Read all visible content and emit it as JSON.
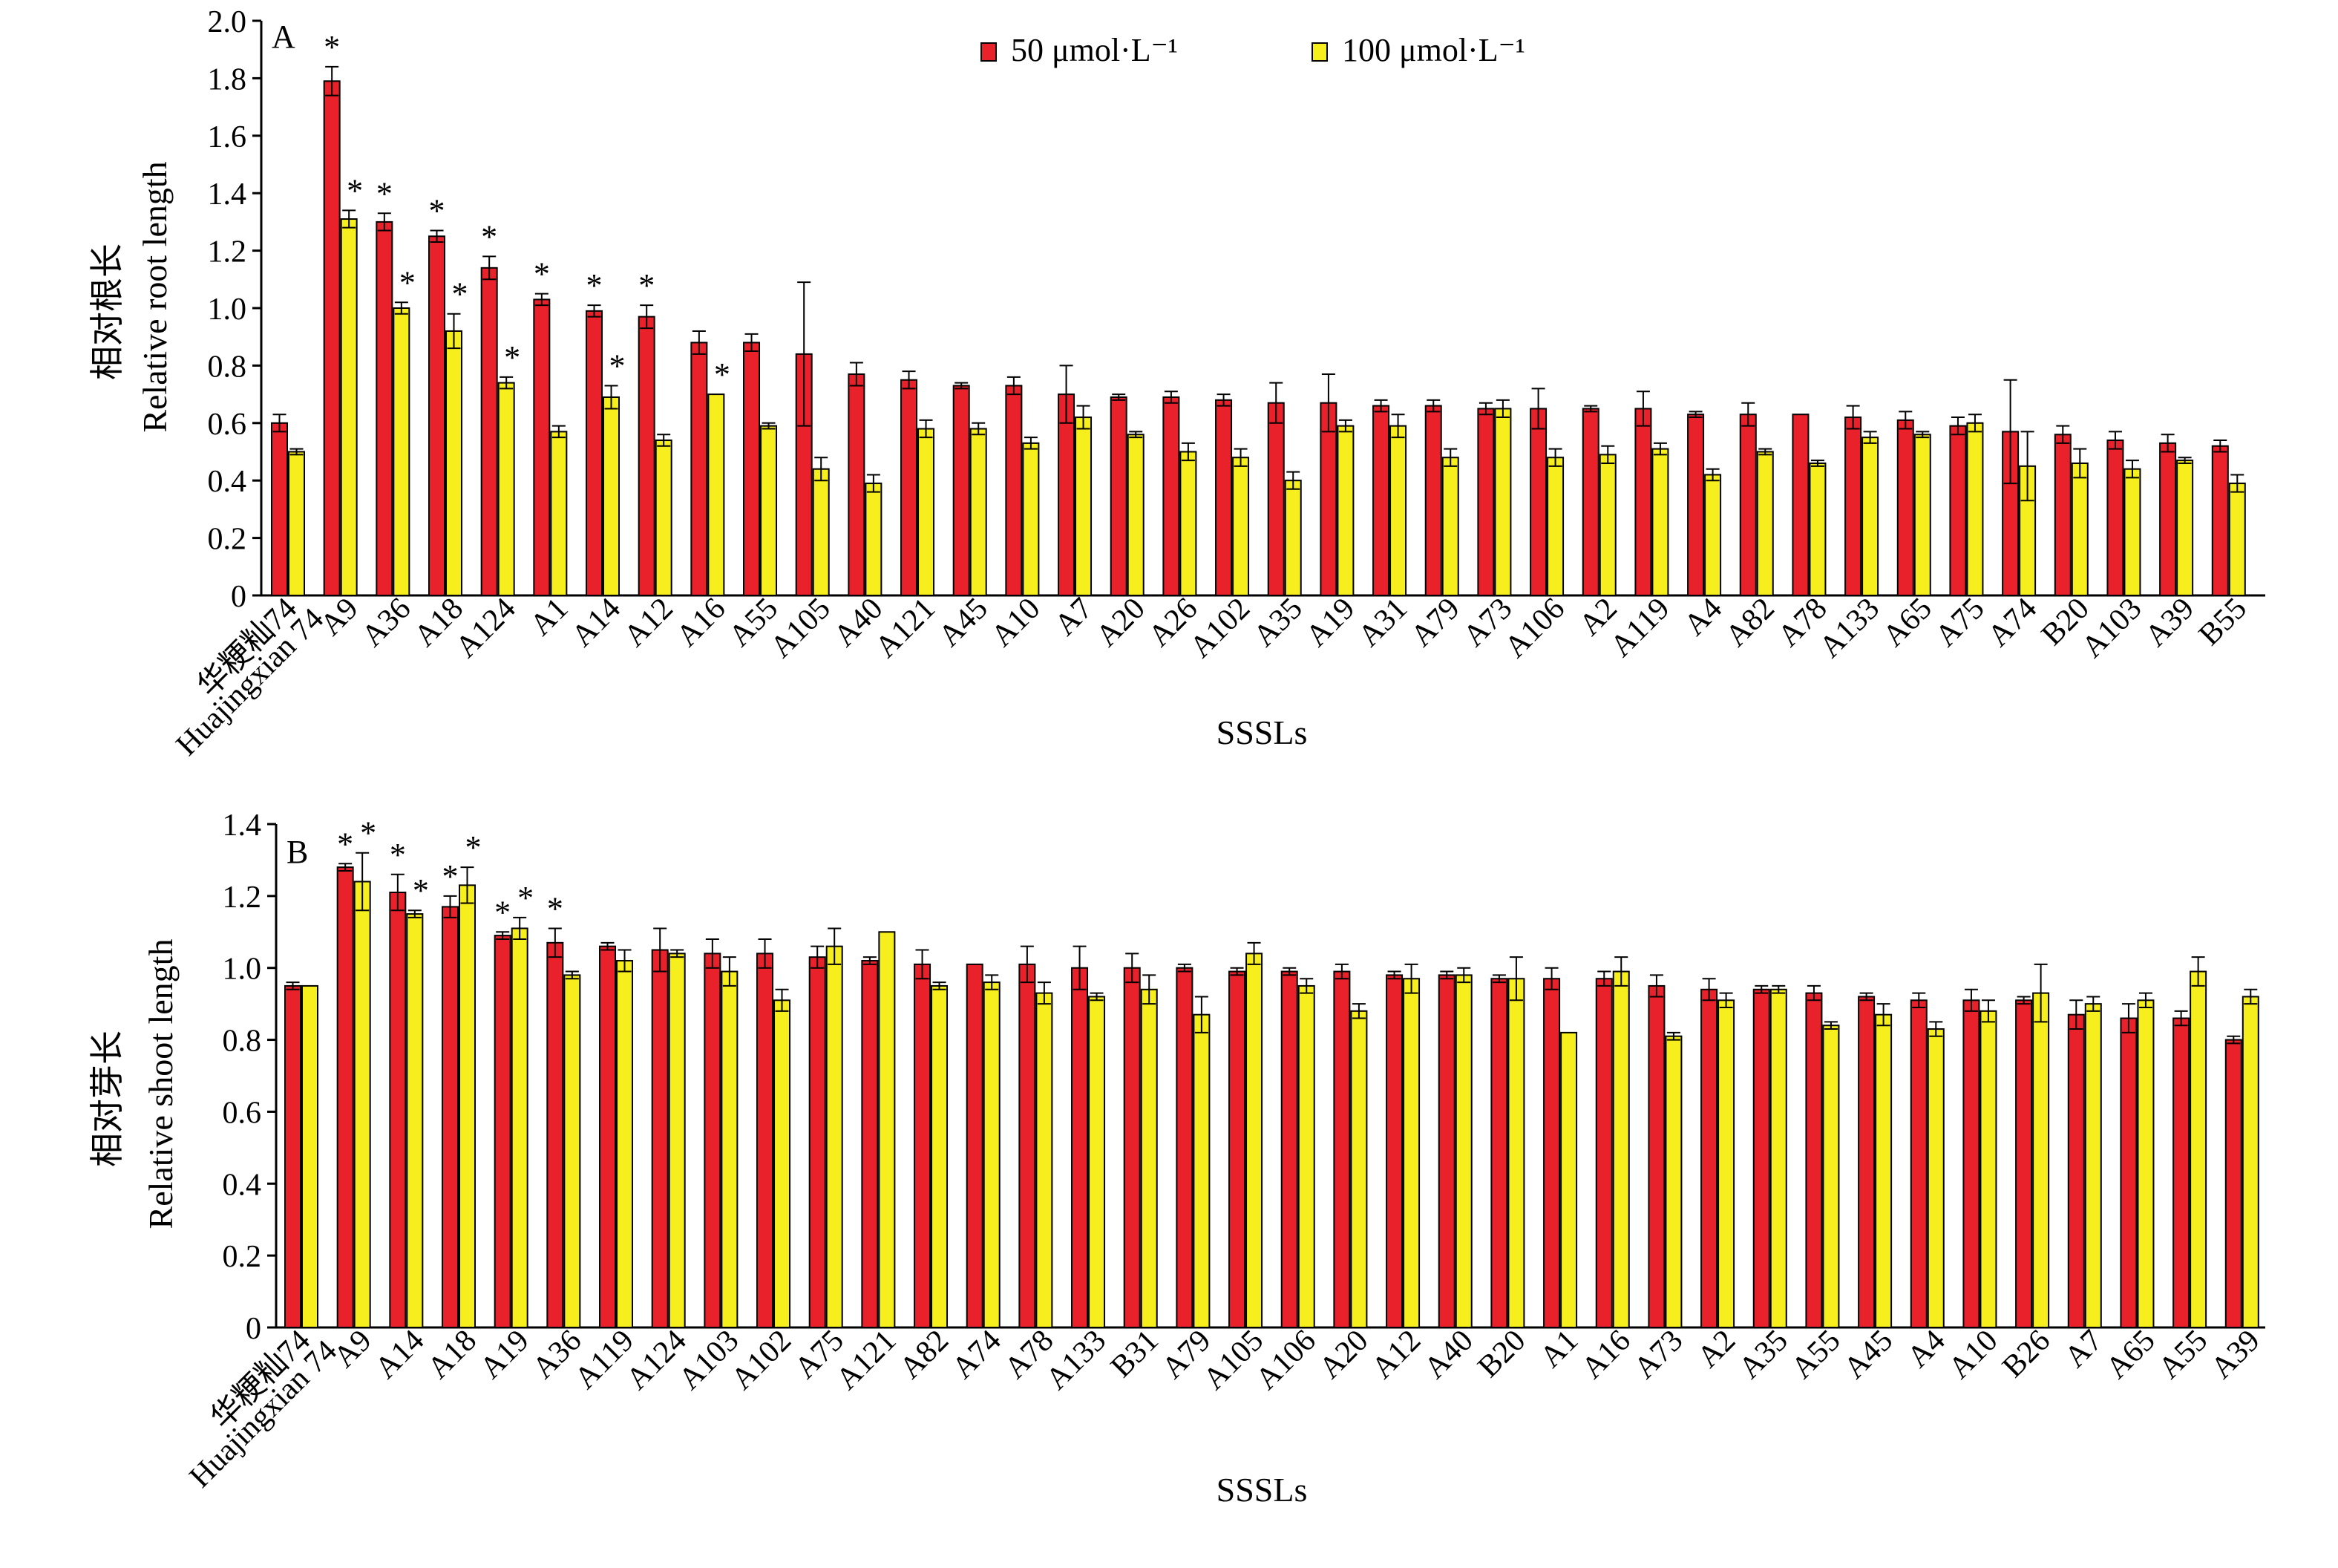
{
  "colors": {
    "series_50": "#E8212A",
    "series_100": "#F6EE1D",
    "bar_edge": "#000000",
    "axis": "#000000"
  },
  "legend": [
    {
      "label": "50 μmol·L⁻¹",
      "color": "#E8212A"
    },
    {
      "label": "100 μmol·L⁻¹",
      "color": "#F6EE1D"
    }
  ],
  "chart_data": [
    {
      "type": "bar",
      "panel_label": "A",
      "ylabel_cn": "相对根长",
      "ylabel": "Relative root length",
      "xlabel": "SSSLs",
      "ylim": [
        0,
        2.0
      ],
      "yticks": [
        "0",
        "0.2",
        "0.4",
        "0.6",
        "0.8",
        "1.0",
        "1.2",
        "1.4",
        "1.6",
        "1.8",
        "2.0"
      ],
      "categories": [
        "华粳籼74 Huajingxian 74",
        "A9",
        "A36",
        "A18",
        "A124",
        "A1",
        "A14",
        "A12",
        "A16",
        "A55",
        "A105",
        "A40",
        "A121",
        "A45",
        "A10",
        "A7",
        "A20",
        "A26",
        "A102",
        "A35",
        "A19",
        "A31",
        "A79",
        "A73",
        "A106",
        "A2",
        "A119",
        "A4",
        "A82",
        "A78",
        "A133",
        "A65",
        "A75",
        "A74",
        "B20",
        "A103",
        "A39",
        "B55"
      ],
      "series": [
        {
          "name": "50 μmol·L⁻¹",
          "values": [
            0.6,
            1.79,
            1.3,
            1.25,
            1.14,
            1.03,
            0.99,
            0.97,
            0.88,
            0.88,
            0.84,
            0.77,
            0.75,
            0.73,
            0.73,
            0.7,
            0.69,
            0.69,
            0.68,
            0.67,
            0.67,
            0.66,
            0.66,
            0.65,
            0.65,
            0.65,
            0.65,
            0.63,
            0.63,
            0.63,
            0.62,
            0.61,
            0.59,
            0.57,
            0.56,
            0.54,
            0.53,
            0.52
          ],
          "errors": [
            0.03,
            0.05,
            0.03,
            0.02,
            0.04,
            0.02,
            0.02,
            0.04,
            0.04,
            0.03,
            0.25,
            0.04,
            0.03,
            0.01,
            0.03,
            0.1,
            0.01,
            0.02,
            0.02,
            0.07,
            0.1,
            0.02,
            0.02,
            0.02,
            0.07,
            0.01,
            0.06,
            0.01,
            0.04,
            0.0,
            0.04,
            0.03,
            0.03,
            0.18,
            0.03,
            0.03,
            0.03,
            0.02
          ],
          "stars": [
            "",
            "*",
            "*",
            "*",
            "*",
            "*",
            "*",
            "*",
            "",
            "",
            "",
            "",
            "",
            "",
            "",
            "",
            "",
            "",
            "",
            "",
            "",
            "",
            "",
            "",
            "",
            "",
            "",
            "",
            "",
            "",
            "",
            "",
            "",
            "",
            "",
            "",
            "",
            ""
          ]
        },
        {
          "name": "100 μmol·L⁻¹",
          "values": [
            0.5,
            1.31,
            1.0,
            0.92,
            0.74,
            0.57,
            0.69,
            0.54,
            0.7,
            0.59,
            0.44,
            0.39,
            0.58,
            0.58,
            0.53,
            0.62,
            0.56,
            0.5,
            0.48,
            0.4,
            0.59,
            0.59,
            0.48,
            0.65,
            0.48,
            0.49,
            0.51,
            0.42,
            0.5,
            0.46,
            0.55,
            0.56,
            0.6,
            0.45,
            0.46,
            0.44,
            0.47,
            0.39
          ],
          "errors": [
            0.01,
            0.03,
            0.02,
            0.06,
            0.02,
            0.02,
            0.04,
            0.02,
            0.0,
            0.01,
            0.04,
            0.03,
            0.03,
            0.02,
            0.02,
            0.04,
            0.01,
            0.03,
            0.03,
            0.03,
            0.02,
            0.04,
            0.03,
            0.03,
            0.03,
            0.03,
            0.02,
            0.02,
            0.01,
            0.01,
            0.02,
            0.01,
            0.03,
            0.12,
            0.05,
            0.03,
            0.01,
            0.03
          ],
          "stars": [
            "",
            "*",
            "*",
            "*",
            "*",
            "",
            "*",
            "",
            "*",
            "",
            "",
            "",
            "",
            "",
            "",
            "",
            "",
            "",
            "",
            "",
            "",
            "",
            "",
            "",
            "",
            "",
            "",
            "",
            "",
            "",
            "",
            "",
            "",
            "",
            "",
            "",
            "",
            ""
          ]
        }
      ]
    },
    {
      "type": "bar",
      "panel_label": "B",
      "ylabel_cn": "相对芽长",
      "ylabel": "Relative shoot length",
      "xlabel": "SSSLs",
      "ylim": [
        0,
        1.4
      ],
      "yticks": [
        "0",
        "0.2",
        "0.4",
        "0.6",
        "0.8",
        "1.0",
        "1.2",
        "1.4"
      ],
      "categories": [
        "华粳籼74 Huajingxian 74",
        "A9",
        "A14",
        "A18",
        "A19",
        "A36",
        "A119",
        "A124",
        "A103",
        "A102",
        "A75",
        "A121",
        "A82",
        "A74",
        "A78",
        "A133",
        "B31",
        "A79",
        "A105",
        "A106",
        "A20",
        "A12",
        "A40",
        "B20",
        "A1",
        "A16",
        "A73",
        "A2",
        "A35",
        "A55",
        "A45",
        "A4",
        "A10",
        "B26",
        "A7",
        "A65",
        "A55",
        "A39"
      ],
      "series": [
        {
          "name": "50 μmol·L⁻¹",
          "values": [
            0.95,
            1.28,
            1.21,
            1.17,
            1.09,
            1.07,
            1.06,
            1.05,
            1.04,
            1.04,
            1.03,
            1.02,
            1.01,
            1.01,
            1.01,
            1.0,
            1.0,
            1.0,
            0.99,
            0.99,
            0.99,
            0.98,
            0.98,
            0.97,
            0.97,
            0.97,
            0.95,
            0.94,
            0.94,
            0.93,
            0.92,
            0.91,
            0.91,
            0.91,
            0.87,
            0.86,
            0.86,
            0.8
          ],
          "errors": [
            0.01,
            0.01,
            0.05,
            0.03,
            0.01,
            0.04,
            0.01,
            0.06,
            0.04,
            0.04,
            0.03,
            0.01,
            0.04,
            0.0,
            0.05,
            0.06,
            0.04,
            0.01,
            0.01,
            0.01,
            0.02,
            0.01,
            0.01,
            0.01,
            0.03,
            0.02,
            0.03,
            0.03,
            0.01,
            0.02,
            0.01,
            0.02,
            0.03,
            0.01,
            0.04,
            0.04,
            0.02,
            0.01
          ],
          "stars": [
            "",
            "*",
            "*",
            "*",
            "*",
            "*",
            "",
            "",
            "",
            "",
            "",
            "",
            "",
            "",
            "",
            "",
            "",
            "",
            "",
            "",
            "",
            "",
            "",
            "",
            "",
            "",
            "",
            "",
            "",
            "",
            "",
            "",
            "",
            "",
            "",
            "",
            "",
            ""
          ]
        },
        {
          "name": "100 μmol·L⁻¹",
          "values": [
            0.95,
            1.24,
            1.15,
            1.23,
            1.11,
            0.98,
            1.02,
            1.04,
            0.99,
            0.91,
            1.06,
            1.1,
            0.95,
            0.96,
            0.93,
            0.92,
            0.94,
            0.87,
            1.04,
            0.95,
            0.88,
            0.97,
            0.98,
            0.97,
            0.82,
            0.99,
            0.81,
            0.91,
            0.94,
            0.84,
            0.87,
            0.83,
            0.88,
            0.93,
            0.9,
            0.91,
            0.99,
            0.92
          ],
          "errors": [
            0.0,
            0.08,
            0.01,
            0.05,
            0.03,
            0.01,
            0.03,
            0.01,
            0.04,
            0.03,
            0.05,
            0.0,
            0.01,
            0.02,
            0.03,
            0.01,
            0.04,
            0.05,
            0.03,
            0.02,
            0.02,
            0.04,
            0.02,
            0.06,
            0.0,
            0.04,
            0.01,
            0.02,
            0.01,
            0.01,
            0.03,
            0.02,
            0.03,
            0.08,
            0.02,
            0.02,
            0.04,
            0.02
          ],
          "stars": [
            "",
            "*",
            "*",
            "*",
            "*",
            "",
            "",
            "",
            "",
            "",
            "",
            "",
            "",
            "",
            "",
            "",
            "",
            "",
            "",
            "",
            "",
            "",
            "",
            "",
            "",
            "",
            "",
            "",
            "",
            "",
            "",
            "",
            "",
            "",
            "",
            "",
            "",
            ""
          ]
        }
      ]
    }
  ]
}
